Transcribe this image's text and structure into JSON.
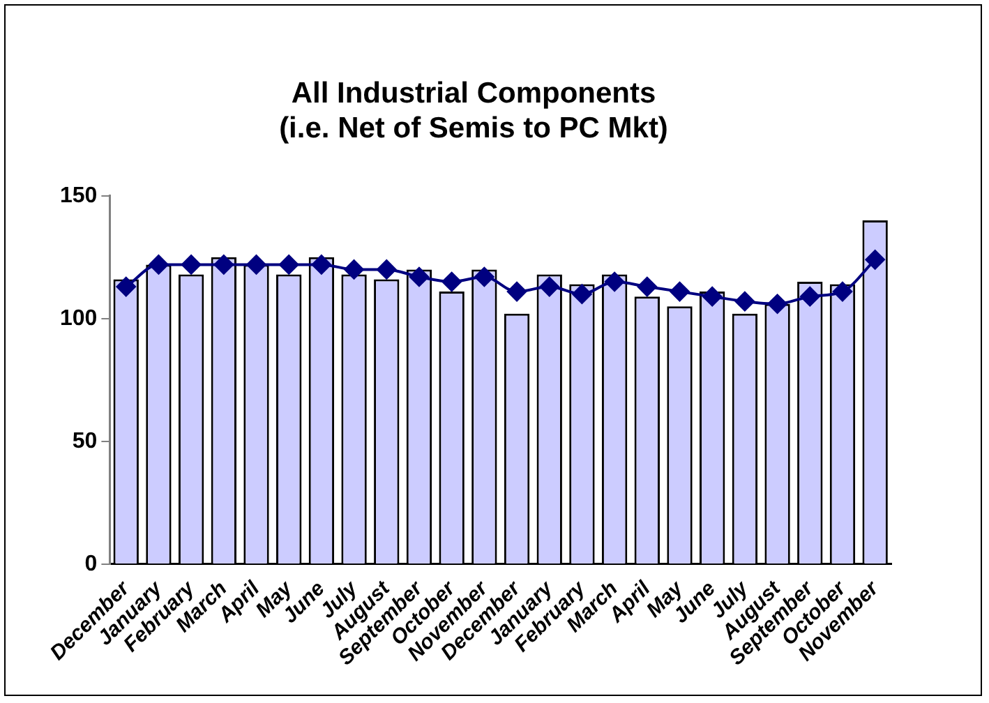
{
  "chart_data": {
    "type": "bar",
    "title": "All Industrial Components\n(i.e. Net of Semis to PC Mkt)",
    "categories": [
      "December",
      "January",
      "February",
      "March",
      "April",
      "May",
      "June",
      "July",
      "August",
      "September",
      "October",
      "November",
      "December",
      "January",
      "February",
      "March",
      "April",
      "May",
      "June",
      "July",
      "August",
      "September",
      "October",
      "November"
    ],
    "series": [
      {
        "color": "#ccccff",
        "values": [
          116,
          122,
          118,
          125,
          122,
          118,
          125,
          118,
          116,
          120,
          111,
          120,
          102,
          118,
          114,
          118,
          109,
          105,
          111,
          102,
          106,
          115,
          114,
          140
        ]
      },
      {
        "type": "line",
        "color": "#000080",
        "marker": "diamond",
        "values": [
          113,
          122,
          122,
          122,
          122,
          122,
          122,
          120,
          120,
          117,
          115,
          117,
          111,
          113,
          110,
          115,
          113,
          111,
          109,
          107,
          106,
          109,
          111,
          124
        ]
      }
    ],
    "ylim": [
      0,
      150
    ],
    "yticks": [
      0,
      50,
      100,
      150
    ],
    "grid": false,
    "legend": false
  }
}
